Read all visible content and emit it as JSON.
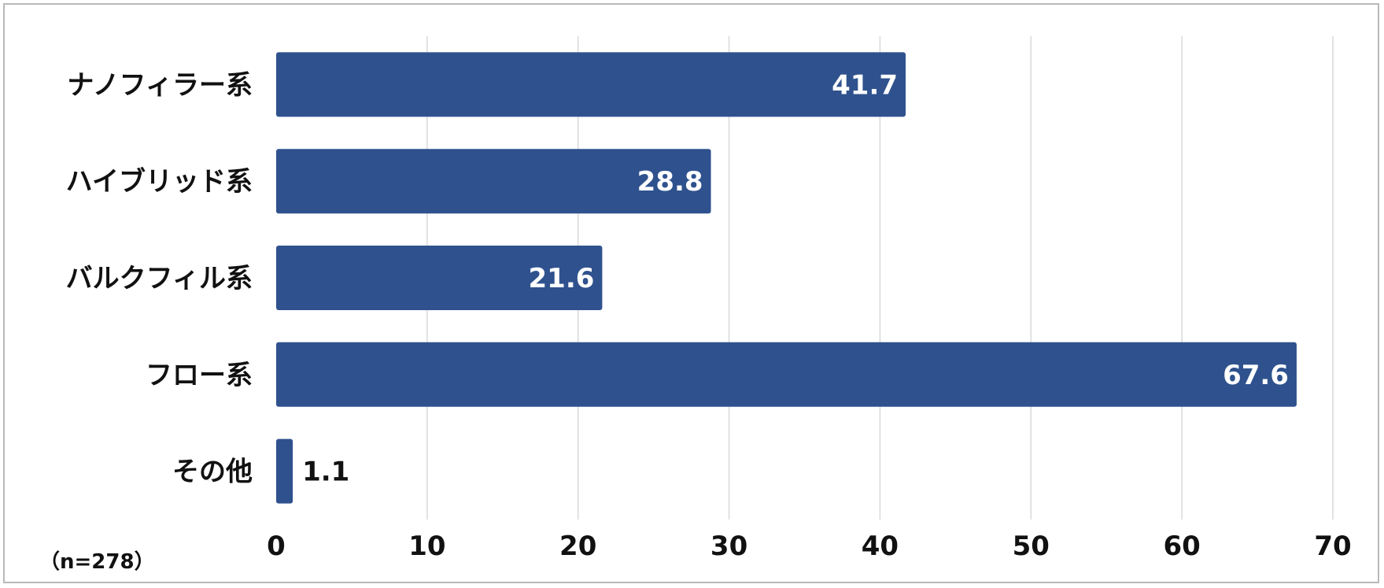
{
  "chart_data": {
    "type": "bar",
    "orientation": "horizontal",
    "categories": [
      "ナノフィラー系",
      "ハイブリッド系",
      "バルクフィル系",
      "フロー系",
      "その他"
    ],
    "values": [
      41.7,
      28.8,
      21.6,
      67.6,
      1.1
    ],
    "value_labels": [
      "41.7",
      "28.8",
      "21.6",
      "67.6",
      "1.1"
    ],
    "xlim": [
      0,
      70
    ],
    "xticks": [
      0,
      10,
      20,
      30,
      40,
      50,
      60,
      70
    ],
    "xtick_labels": [
      "0",
      "10",
      "20",
      "30",
      "40",
      "50",
      "60",
      "70"
    ],
    "note": "（n=278）",
    "grid": "vertical",
    "bar_color": "#2f528e",
    "label_color_inside": "#ffffff",
    "label_color_outside": "#111111",
    "grid_color": "#d9d9d9"
  }
}
